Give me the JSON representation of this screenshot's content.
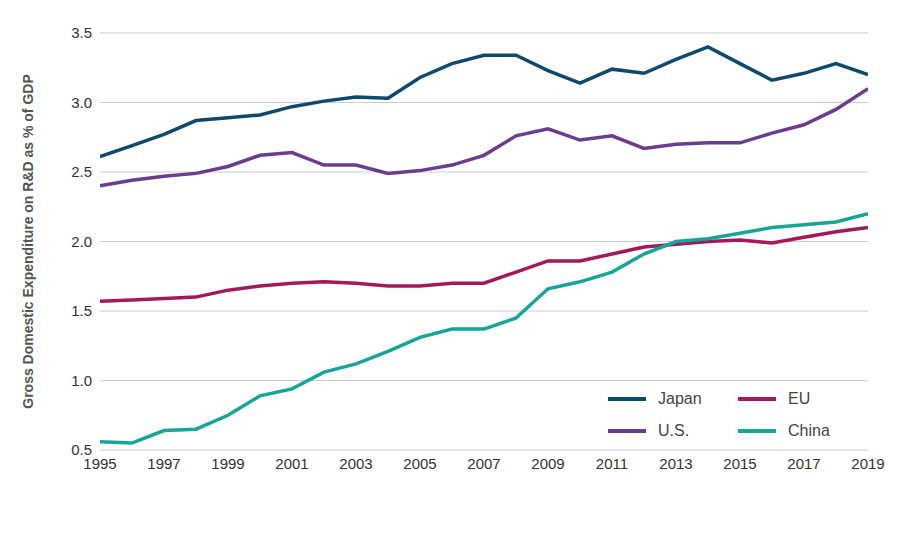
{
  "chart_data": {
    "type": "line",
    "y_label": "Gross Domestic Expenditure on R&D as % of GDP",
    "x": [
      1995,
      1996,
      1997,
      1998,
      1999,
      2000,
      2001,
      2002,
      2003,
      2004,
      2005,
      2006,
      2007,
      2008,
      2009,
      2010,
      2011,
      2012,
      2013,
      2014,
      2015,
      2016,
      2017,
      2018,
      2019
    ],
    "xlim": [
      1995,
      2019
    ],
    "xticks": [
      1995,
      1997,
      1999,
      2001,
      2003,
      2005,
      2007,
      2009,
      2011,
      2013,
      2015,
      2017,
      2019
    ],
    "ylim": [
      0.5,
      3.5
    ],
    "yticks": [
      0.5,
      {
        "value": 1,
        "label": "1.0"
      },
      1.5,
      {
        "value": 2,
        "label": "2.0"
      },
      2.5,
      {
        "value": 3,
        "label": "3.0"
      },
      3.5
    ],
    "grid": true,
    "legend": "lower right",
    "series": [
      {
        "name": "Japan",
        "color": "#0e4a6e",
        "values": [
          2.61,
          2.69,
          2.77,
          2.87,
          2.89,
          2.91,
          2.97,
          3.01,
          3.04,
          3.03,
          3.18,
          3.28,
          3.34,
          3.34,
          3.23,
          3.14,
          3.24,
          3.21,
          3.31,
          3.4,
          3.28,
          3.16,
          3.21,
          3.28,
          3.2
        ]
      },
      {
        "name": "U.S.",
        "color": "#6b3d8f",
        "values": [
          2.4,
          2.44,
          2.47,
          2.49,
          2.54,
          2.62,
          2.64,
          2.55,
          2.55,
          2.49,
          2.51,
          2.55,
          2.62,
          2.76,
          2.81,
          2.73,
          2.76,
          2.67,
          2.7,
          2.71,
          2.71,
          2.78,
          2.84,
          2.95,
          3.1
        ]
      },
      {
        "name": "EU",
        "color": "#a3195b",
        "values": [
          1.57,
          1.58,
          1.59,
          1.6,
          1.65,
          1.68,
          1.7,
          1.71,
          1.7,
          1.68,
          1.68,
          1.7,
          1.7,
          1.78,
          1.86,
          1.86,
          1.91,
          1.96,
          1.98,
          2.0,
          2.01,
          1.99,
          2.03,
          2.07,
          2.1
        ]
      },
      {
        "name": "China",
        "color": "#16a596",
        "values": [
          0.56,
          0.55,
          0.64,
          0.65,
          0.75,
          0.89,
          0.94,
          1.06,
          1.12,
          1.21,
          1.31,
          1.37,
          1.37,
          1.45,
          1.66,
          1.71,
          1.78,
          1.91,
          2.0,
          2.02,
          2.06,
          2.1,
          2.12,
          2.14,
          2.2
        ]
      }
    ]
  }
}
